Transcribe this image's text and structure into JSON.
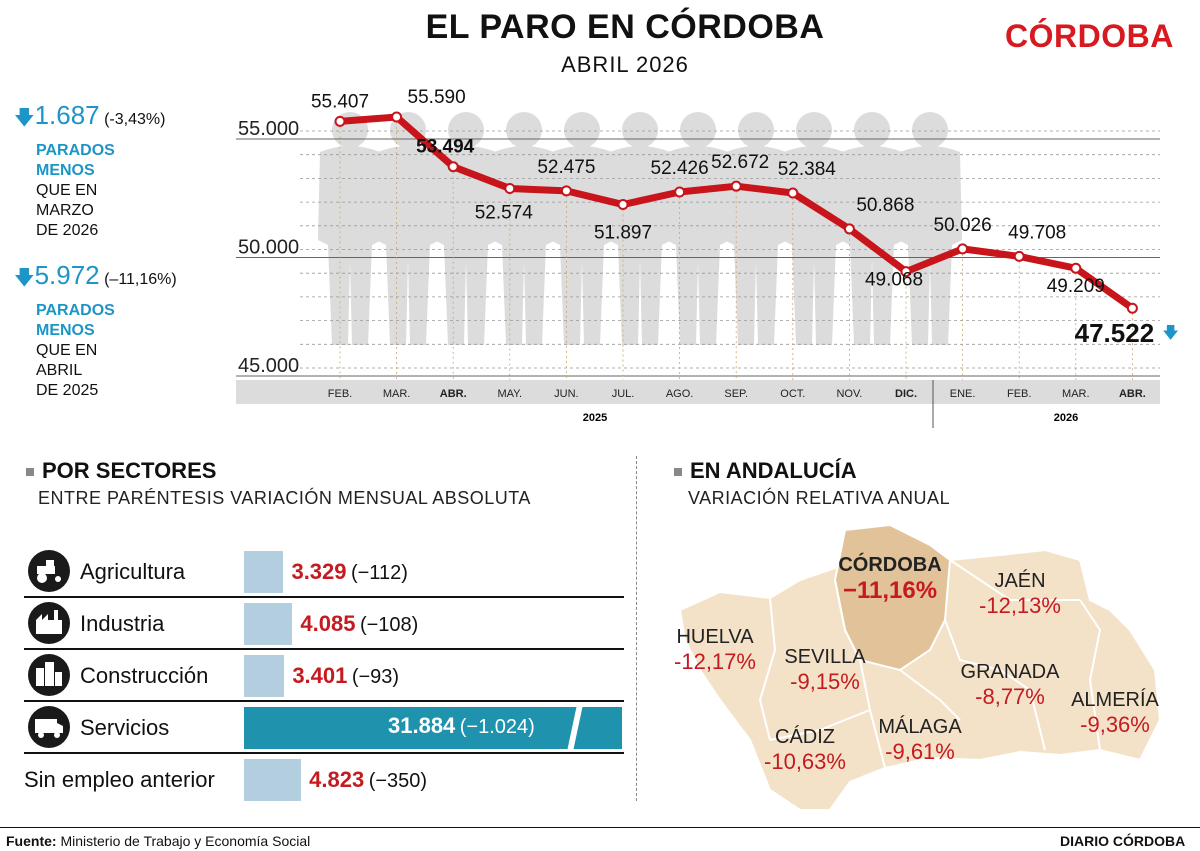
{
  "header": {
    "title": "EL PARO EN CÓRDOBA",
    "subtitle": "ABRIL 2026",
    "brand": "CÓRDOBA"
  },
  "stats": [
    {
      "value": "1.687",
      "pct": "(-3,43%)",
      "line1": "PARADOS",
      "line2": "MENOS",
      "rest": [
        "QUE EN",
        "MARZO",
        "DE 2026"
      ]
    },
    {
      "value": "5.972",
      "pct": "(–11,16%)",
      "line1": "PARADOS",
      "line2": "MENOS",
      "rest": [
        "QUE EN",
        "ABRIL",
        "DE 2025"
      ]
    }
  ],
  "chart_data": {
    "type": "line",
    "categories": [
      "FEB.",
      "MAR.",
      "ABR.",
      "MAY.",
      "JUN.",
      "JUL.",
      "AGO.",
      "SEP.",
      "OCT.",
      "NOV.",
      "DIC.",
      "ENE.",
      "FEB.",
      "MAR.",
      "ABR."
    ],
    "values": [
      55407,
      55590,
      53494,
      52574,
      52475,
      51897,
      52426,
      52672,
      52384,
      50868,
      49068,
      50026,
      49708,
      49209,
      47522
    ],
    "value_labels": [
      "55.407",
      "55.590",
      "53.494",
      "52.574",
      "52.475",
      "51.897",
      "52.426",
      "52.672",
      "52.384",
      "50.868",
      "49.068",
      "50.026",
      "49.708",
      "49.209",
      "47.522"
    ],
    "y_ticks": [
      "55.000",
      "50.000",
      "45.000"
    ],
    "y_tick_values": [
      55000,
      50000,
      45000
    ],
    "ylim": [
      45000,
      55700
    ],
    "years": [
      "2025",
      "2026"
    ],
    "year_split_index": 11,
    "line_color": "#c8151b",
    "grid": true
  },
  "sectors": {
    "heading": "POR SECTORES",
    "subheading": "ENTRE PARÉNTESIS VARIACIÓN MENSUAL ABSOLUTA",
    "rows": [
      {
        "label": "Agricultura",
        "value": "3.329",
        "change": "(−112)",
        "icon": "tractor-icon",
        "amount": 3329
      },
      {
        "label": "Industria",
        "value": "4.085",
        "change": "(−108)",
        "icon": "factory-icon",
        "amount": 4085
      },
      {
        "label": "Construcción",
        "value": "3.401",
        "change": "(−93)",
        "icon": "buildings-icon",
        "amount": 3401
      },
      {
        "label": "Servicios",
        "value": "31.884",
        "change": "(−1.024)",
        "icon": "van-icon",
        "amount": 31884
      },
      {
        "label": "Sin empleo anterior",
        "value": "4.823",
        "change": "(−350)",
        "icon": "",
        "amount": 4823
      }
    ],
    "bar_color": "#b3cfdf",
    "bar_highlight_color": "#1f93ad"
  },
  "andalucia": {
    "heading": "EN ANDALUCÍA",
    "subheading": "VARIACIÓN RELATIVA ANUAL",
    "regions": [
      {
        "name": "CÓRDOBA",
        "pct": "−11,16%"
      },
      {
        "name": "JAÉN",
        "pct": "-12,13%"
      },
      {
        "name": "HUELVA",
        "pct": "-12,17%"
      },
      {
        "name": "SEVILLA",
        "pct": "-9,15%"
      },
      {
        "name": "GRANADA",
        "pct": "-8,77%"
      },
      {
        "name": "ALMERÍA",
        "pct": "-9,36%"
      },
      {
        "name": "CÁDIZ",
        "pct": "-10,63%"
      },
      {
        "name": "MÁLAGA",
        "pct": "-9,61%"
      }
    ]
  },
  "footer": {
    "source_label": "Fuente:",
    "source": "Ministerio de Trabajo y Economía Social",
    "credit": "DIARIO CÓRDOBA"
  }
}
